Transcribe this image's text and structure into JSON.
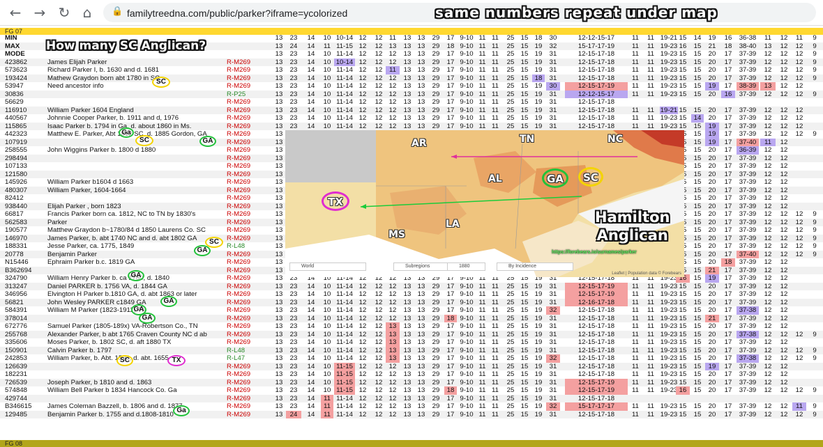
{
  "browser": {
    "url": "familytreedna.com/public/parker?iframe=ycolorized",
    "back_icon": "back-arrow-icon",
    "forward_icon": "forward-arrow-icon",
    "reload_icon": "reload-icon",
    "home_icon": "home-icon",
    "lock_icon": "lock-icon"
  },
  "annotations": {
    "header": "same numbers repeat under map",
    "question": "How many SC Anglican?",
    "hamilton_line1": "Hamilton",
    "hamilton_line2": "Anglican"
  },
  "groups": {
    "top": "FG 07",
    "bottom": "FG 08"
  },
  "stat_rows": [
    {
      "label": "MIN",
      "vals": [
        "13",
        "23",
        "14",
        "10",
        "10-14",
        "12",
        "12",
        "11",
        "13",
        "13",
        "29",
        "17",
        "9-10",
        "11",
        "11",
        "25",
        "15",
        "18",
        "30",
        "12-12-15-17",
        "11",
        "11",
        "19-21",
        "15",
        "14",
        "19",
        "16",
        "36-38",
        "11",
        "12",
        "11",
        "9"
      ]
    },
    {
      "label": "MAX",
      "vals": [
        "13",
        "24",
        "14",
        "11",
        "11-15",
        "12",
        "12",
        "13",
        "13",
        "13",
        "29",
        "18",
        "9-10",
        "11",
        "11",
        "25",
        "15",
        "19",
        "32",
        "15-17-17-19",
        "11",
        "11",
        "19-23",
        "16",
        "15",
        "21",
        "18",
        "38-40",
        "13",
        "12",
        "12",
        "9"
      ]
    },
    {
      "label": "MODE",
      "vals": [
        "13",
        "23",
        "14",
        "10",
        "11-14",
        "12",
        "12",
        "12",
        "13",
        "13",
        "29",
        "17",
        "9-10",
        "11",
        "11",
        "25",
        "15",
        "19",
        "31",
        "12-15-17-18",
        "11",
        "11",
        "19-23",
        "15",
        "15",
        "20",
        "17",
        "37-39",
        "12",
        "12",
        "12",
        "9"
      ]
    }
  ],
  "rows": [
    {
      "kit": "423862",
      "name": "James Elijah Parker",
      "hg": "R-M269",
      "s": "13 23 14 10 10-14 12 12 12 13 13 29 17 9-10 11 11 25 15 19 31 12-15-17-18 11 11 19-23 15 15 20 17 37-39 12 12 12 9",
      "hl": {
        "4": "p"
      }
    },
    {
      "kit": "573623",
      "name": "Richard Parker I, b. 1630 and d. 1681",
      "hg": "R-M269",
      "s": "13 23 14 10 11-14 12 12 11 13 13 29 17 9-10 11 11 25 15 19 31 12-15-17-18 11 11 19-23 15 15 20 17 37-39 12 12 12 9",
      "hl": {
        "7": "p"
      }
    },
    {
      "kit": "193424",
      "name": "Mathew Graydon born abt 1780 in SC",
      "hg": "R-M269",
      "s": "13 23 14 10 11-14 12 12 12 13 13 29 17 9-10 11 11 25 15 18 31 12-15-17-18 11 11 19-23 15 15 20 17 37-39 12 12 12 9",
      "hl": {
        "17": "p"
      }
    },
    {
      "kit": "53947",
      "name": "Need ancestor info",
      "hg": "R-M269",
      "s": "13 23 14 10 11-14 12 12 12 13 13 29 17 9-10 11 11 25 15 19 30 12-15-17-19 11 11 19-23 15 15 19 17 38-39 13 12 12",
      "hl": {
        "18": "p",
        "19": "r",
        "25": "p",
        "27": "r",
        "28": "r"
      }
    },
    {
      "kit": "30836",
      "name": "",
      "hg": "R-P25",
      "hgc": "g",
      "s": "13 23 14 10 11-14 12 12 12 13 13 29 17 9-10 11 11 25 15 19 31 12-12-15-17 11 11 19-23 15 15 20 16 37-39 12 12 12 9",
      "hl": {
        "19": "p",
        "26": "p"
      }
    },
    {
      "kit": "56629",
      "name": "",
      "hg": "R-M269",
      "s": "13 23 14 10 11-14 12 12 12 13 13 29 17 9-10 11 11 25 15 19 31 12-15-17-18",
      "hl": {}
    },
    {
      "kit": "116910",
      "name": "William Parker 1604 England",
      "hg": "R-M269",
      "s": "13 23 14 10 11-14 12 12 12 13 13 29 17 9-10 11 11 25 15 19 31 12-15-17-18 11 11 19-21 15 15 20 17 37-39 12 12 12",
      "hl": {
        "22": "p"
      }
    },
    {
      "kit": "440567",
      "name": "Johnnie Cooper Parker, b. 1911 and d, 1976",
      "hg": "R-M269",
      "s": "13 23 14 10 11-14 12 12 12 13 13 29 17 9-10 11 11 25 15 19 31 12-15-17-18 11 11 19-23 15 14 20 17 37-39 12 12 12",
      "hl": {
        "24": "p"
      }
    },
    {
      "kit": "115865",
      "name": "Isaac Parker b. 1794 in Ga, d. about 1860 in Ms.",
      "hg": "R-M269",
      "s": "13 23 14 10 11-14 12 12 12 13 13 29 17 9-10 11 11 25 15 19 31 12-15-17-18 11 11 19-23 15 15 19 17 37-39 12 12 12",
      "hl": {
        "25": "p"
      }
    },
    {
      "kit": "442323",
      "name": "Matthew E. Parker, Abt 1812 SC, d. 1885 Gordon, GA",
      "hg": "R-M269",
      "s": "13 23 14 10 11-14 12 12 12 13 13 29 17 9-10 11 11 25 15 19 31 12-15-17-18 11 11 19-23 15 15 19 17 37-39 12 12 12 9",
      "hl": {
        "25": "p"
      }
    },
    {
      "kit": "107919",
      "name": "",
      "hg": "R-M269",
      "s": "13 23 14 10 11-14 12 12 12 13 13 29 17 9-10 11 11 25 15 19 31 12-15-17-18 11 11 19-23 15 15 19 17 37-40 11 12",
      "hl": {
        "25": "p",
        "27": "r",
        "28": "p"
      }
    },
    {
      "kit": "258555",
      "name": "John Wiggins Parker b. 1800 d 1880",
      "hg": "R-M269",
      "s": "13 23 14 10 11-14 12 12 12 13 13 29 17 9-10 11 11 25 15 19 31 12-15-17-18 11 11 19-23 15 15 20 17 36-39 12 12",
      "hl": {
        "27": "p"
      }
    },
    {
      "kit": "298494",
      "name": "",
      "hg": "R-M269",
      "s": "13 23 14 10 11-14 12 12 12 13 13 29 17 9-10 11 11 25 15 19 31 12-15-17-18 11 11 19-23 15 15 20 17 37-39 12 12",
      "hl": {}
    },
    {
      "kit": "107133",
      "name": "",
      "hg": "R-M269",
      "s": "13 23 14 10 11-14 12 12 12 13 13 29 17 9-10 11 11 25 15 19 31 12-15-17-18 11 11 19-23 15 15 20 17 37-39 12 12",
      "hl": {}
    },
    {
      "kit": "121580",
      "name": "",
      "hg": "R-M269",
      "s": "13 23 14 10 11-14 12 12 12 13 13 29 17 9-10 11 11 25 15 19 31 12-15-17-18 11 11 19-23 15 15 20 17 37-39 12 12",
      "hl": {}
    },
    {
      "kit": "145926",
      "name": "William Parker b1604 d 1663",
      "hg": "R-M269",
      "s": "13 23 14 10 11-14 12 12 12 13 13 29 17 9-10 11 11 25 15 19 31 12-15-17-18 11 11 19-23 15 15 20 17 37-39 12 12",
      "hl": {}
    },
    {
      "kit": "480307",
      "name": "William Parker, 1604-1664",
      "hg": "R-M269",
      "s": "13 23 14 10 11-14 12 12 12 13 13 29 17 9-10 11 11 25 15 19 31 12-15-17-18 11 11 19-23 15 15 20 17 37-39 12 12",
      "hl": {}
    },
    {
      "kit": "82412",
      "name": "",
      "hg": "R-M269",
      "s": "13 23 14 10 11-14 12 12 12 13 13 29 17 9-10 11 11 25 15 19 31 12-15-17-18 11 11 19-23 15 15 20 17 37-39 12 12",
      "hl": {}
    },
    {
      "kit": "938440",
      "name": "Elijah Parker , born 1823",
      "hg": "R-M269",
      "s": "13 23 14 10 11-14 12 12 12 13 13 29 17 9-10 11 11 25 15 19 31 12-15-17-18 11 11 19-23 15 15 20 17 37-39 12 12",
      "hl": {}
    },
    {
      "kit": "66817",
      "name": "Francis Parker born ca. 1812, NC to TN by 1830's",
      "hg": "R-M269",
      "s": "13 23 14 10 11-14 12 12 12 13 13 29 17 9-10 11 11 25 15 19 31 12-15-17-18 11 11 19-23 15 15 20 17 37-39 12 12 12 9",
      "hl": {}
    },
    {
      "kit": "562583",
      "name": "Parker",
      "hg": "R-M269",
      "s": "13 23 14 10 11-14 12 12 12 13 13 29 17 9-10 11 11 25 15 19 31 12-15-17-18 11 11 19-23 15 15 20 17 37-39 12 12 12 9",
      "hl": {}
    },
    {
      "kit": "190577",
      "name": "Matthew Graydon b~1780/84 d 1850 Laurens Co. SC",
      "hg": "R-M269",
      "s": "13 23 14 10 11-14 12 12 12 13 13 29 17 9-10 11 11 25 15 19 31 12-15-17-18 11 11 19-23 15 15 20 17 37-39 12 12 12 9",
      "hl": {}
    },
    {
      "kit": "146970",
      "name": "James Parker, b. abt 1740 NC and d. abt 1802 GA",
      "hg": "R-M269",
      "s": "13 23 14 10 11-14 12 12 12 13 13 29 17 9-10 11 11 25 15 19 31 12-15-17-18 11 11 19-23 15 15 20 17 37-39 12 12 12 9",
      "hl": {}
    },
    {
      "kit": "188331",
      "name": "Jesse Parker, ca. 1775, 1849",
      "hg": "R-L48",
      "hgc": "g",
      "s": "13 23 14 10 11-14 12 12 12 13 13 29 17 9-10 11 11 25 15 19 31 12-15-17-18 11 11 19-23 15 15 20 17 37-39 12 12 12 9",
      "hl": {}
    },
    {
      "kit": "20778",
      "name": "Benjamin Parker",
      "hg": "R-M269",
      "s": "13 23 14 10 11-14 12 12 12 13 13 29 17 9-10 11 11 25 15 19 31 12-15-17-18 11 11 19-23 15 15 20 17 37-40 12 12 12 9",
      "hl": {
        "27": "r"
      }
    },
    {
      "kit": "N15446",
      "name": "Ephraim Parker b.c. 1819 GA",
      "hg": "R-M269",
      "s": "13 23 14 10 11-14 12 12 12 13 13 29 17 9-10 11 11 25 15 19 31 12-15-17-18 11 11 19-23 15 15 20 18 37-39 12 12",
      "hl": {
        "26": "r"
      }
    },
    {
      "kit": "B362694",
      "name": "",
      "hg": "R-M269",
      "s": "13 23 14 10 11-14 12 12 12 13 13 29 17 9-10 11 11 25 15 19 31 12-15-17-18 11 11 19-23 15 15 21 17 37-39 12 12",
      "hl": {
        "25": "r"
      }
    },
    {
      "kit": "324790",
      "name": "William Henry Parker b. ca 1780, d. 1840",
      "hg": "R-M269",
      "s": "13 23 14 10 11-14 12 12 12 13 13 29 17 9-10 11 11 25 15 19 31 12-15-17-18 11 11 19-23 16 15 19 17 37-39 12 12",
      "hl": {
        "23": "r",
        "25": "p"
      }
    },
    {
      "kit": "313247",
      "name": "Daniel PARKER b. 1756 VA, d. 1844 GA",
      "hg": "R-M269",
      "s": "13 23 14 10 11-14 12 12 12 13 13 29 17 9-10 11 11 25 15 19 31 12-15-17-19 11 11 19-23 15 15 20 17 37-39 12 12",
      "hl": {
        "19": "r"
      }
    },
    {
      "kit": "346956",
      "name": "Elvington H Parker b.1810 GA, d. abt 1863 or later",
      "hg": "R-M269",
      "s": "13 23 14 10 11-14 12 12 12 13 13 29 17 9-10 11 11 25 15 19 31 12-15-17-19 11 11 19-23 15 15 20 17 37-39 12 12",
      "hl": {
        "19": "r"
      }
    },
    {
      "kit": "56821",
      "name": "John Wesley PARKER c1849 GA",
      "hg": "R-M269",
      "s": "13 23 14 10 11-14 12 12 12 13 13 29 17 9-10 11 11 25 15 19 31 12-16-17-18 11 11 19-23 15 15 20 17 37-39 12 12",
      "hl": {
        "19": "r"
      }
    },
    {
      "kit": "584391",
      "name": "William M Parker (1823-1911) TN",
      "hg": "R-M269",
      "s": "13 23 14 10 11-14 12 12 12 13 13 29 17 9-10 11 11 25 15 19 32 12-15-17-18 11 11 19-23 15 15 20 17 37-38 12 12",
      "hl": {
        "18": "r",
        "27": "p"
      }
    },
    {
      "kit": "378014",
      "name": "",
      "hg": "R-M269",
      "s": "13 23 14 10 11-14 12 12 12 13 13 29 18 9-10 11 11 25 15 19 31 12-15-17-18 11 11 19-23 15 15 21 17 37-39 12 12",
      "hl": {
        "11": "r",
        "25": "r"
      }
    },
    {
      "kit": "672776",
      "name": "Samuel Parker (1805-189x) VA-Robertson Co., TN",
      "hg": "R-M269",
      "s": "13 23 14 10 11-14 12 12 13 13 13 29 17 9-10 11 11 25 15 19 31 12-15-17-18 11 11 19-23 15 15 20 17 37-39 12 12",
      "hl": {
        "7": "r"
      }
    },
    {
      "kit": "255768",
      "name": "Alexander Parker, b abt 1765 Craven County NC d ab",
      "hg": "R-M269",
      "s": "13 23 14 10 11-14 12 12 13 13 13 29 17 9-10 11 11 25 15 19 31 12-15-17-18 11 11 19-23 15 15 20 17 37-38 12 12 12 9",
      "hl": {
        "7": "r",
        "27": "p"
      }
    },
    {
      "kit": "335606",
      "name": "Moses Parker, b. 1802 SC, d. aft 1880 TX",
      "hg": "R-M269",
      "s": "13 23 14 10 11-14 12 12 13 13 13 29 17 9-10 11 11 25 15 19 31 12-15-17-18 11 11 19-23 15 15 20 17 37-39 12 12",
      "hl": {
        "7": "r"
      }
    },
    {
      "kit": "150901",
      "name": "Calvin Parker b. 1797",
      "hg": "R-L48",
      "hgc": "g",
      "s": "13 23 14 10 11-14 12 12 13 13 13 29 17 9-10 11 11 25 15 19 31 12-15-17-18 11 11 19-23 15 15 20 17 37-39 12 12 12 9",
      "hl": {
        "7": "r"
      }
    },
    {
      "kit": "242853",
      "name": "William Parker, b. Abt. 1598, d. abt. 1655",
      "hg": "R-L47",
      "hgc": "g",
      "s": "13 23 14 10 11-14 12 12 13 13 13 29 17 9-10 11 11 25 15 19 32 12-15-17-18 11 11 19-23 15 15 20 17 37-38 12 12 12 9",
      "hl": {
        "7": "r",
        "18": "r",
        "27": "p"
      }
    },
    {
      "kit": "126639",
      "name": "",
      "hg": "R-M269",
      "s": "13 23 14 10 11-15 12 12 12 13 13 29 17 9-10 11 11 25 15 19 31 12-15-17-18 11 11 19-23 15 15 19 17 37-39 12 12",
      "hl": {
        "4": "r",
        "25": "p"
      }
    },
    {
      "kit": "182231",
      "name": "",
      "hg": "R-M269",
      "s": "13 23 14 10 11-15 12 12 12 13 13 29 17 9-10 11 11 25 15 19 31 12-15-17-18 11 11 19-23 15 15 20 17 37-39 12 12",
      "hl": {
        "4": "r"
      }
    },
    {
      "kit": "726539",
      "name": "Joseph Parker, b 1810 and d. 1863",
      "hg": "R-M269",
      "s": "13 23 14 10 11-15 12 12 12 13 13 29 17 9-10 11 11 25 15 19 31 12-15-17-19 11 11 19-23 15 15 20 17 37-39 12 12",
      "hl": {
        "4": "r",
        "19": "r"
      }
    },
    {
      "kit": "574848",
      "name": "William Bell Parker b 1834 Hancock Co. Ga",
      "hg": "R-M269",
      "s": "13 23 14 10 11-15 12 12 12 13 13 29 18 9-10 11 11 25 15 19 31 12-15-17-19 11 11 19-23 16 15 20 17 37-39 12 12 12 9",
      "hl": {
        "4": "r",
        "11": "r",
        "19": "r",
        "23": "r"
      }
    },
    {
      "kit": "429744",
      "name": "",
      "hg": "R-M269",
      "s": "13 23 14 11 11-14 12 12 12 13 13 29 17 9-10 11 11 25 15 19 31 12-15-17-18",
      "hl": {
        "3": "r"
      }
    },
    {
      "kit": "B346615",
      "name": "James Coleman Bazzell, b. 1806 and d. 1877",
      "hg": "R-M269",
      "s": "13 23 14 11 11-14 12 12 12 13 13 29 17 9-10 11 11 25 15 19 32 15-17-17-17 11 11 19-23 15 15 20 17 37-39 12 12 11 9",
      "hl": {
        "3": "r",
        "18": "r",
        "19": "r",
        "30": "p"
      }
    },
    {
      "kit": "129485",
      "name": "Benjamin Parker b. 1755 and d.1808-1810",
      "hg": "R-M269",
      "s": "13 24 14 11 11-14 12 12 12 13 13 29 17 9-10 11 11 25 15 19 31 12-15-17-18 11 11 19-23 15 15 20 17 37-39 12 12 12 9",
      "hl": {
        "1": "r",
        "3": "r"
      }
    }
  ],
  "circles": {
    "sc": "SC",
    "ga": "GA",
    "ga_lower": "Ga",
    "tx": "TX"
  },
  "map": {
    "states": {
      "ar": "AR",
      "tn": "TN",
      "nc": "NC",
      "al": "AL",
      "ms": "MS",
      "la": "LA"
    },
    "circles": {
      "ga": "GA",
      "sc": "SC",
      "tx": "TX"
    },
    "link": "https://forebears.io/surnames/parker",
    "controls": {
      "region": "World",
      "subregion": "Subregions",
      "year": "1880",
      "mode": "By Incidence"
    },
    "attribution": "Leaflet | Population data © Forebears",
    "colors": {
      "pink_arrow": "#e0309c",
      "green_arrow": "#1bcc3a",
      "sc_circle": "#f4d400",
      "ga_circle": "#22c23a",
      "tx_circle": "#e02cd0"
    }
  }
}
